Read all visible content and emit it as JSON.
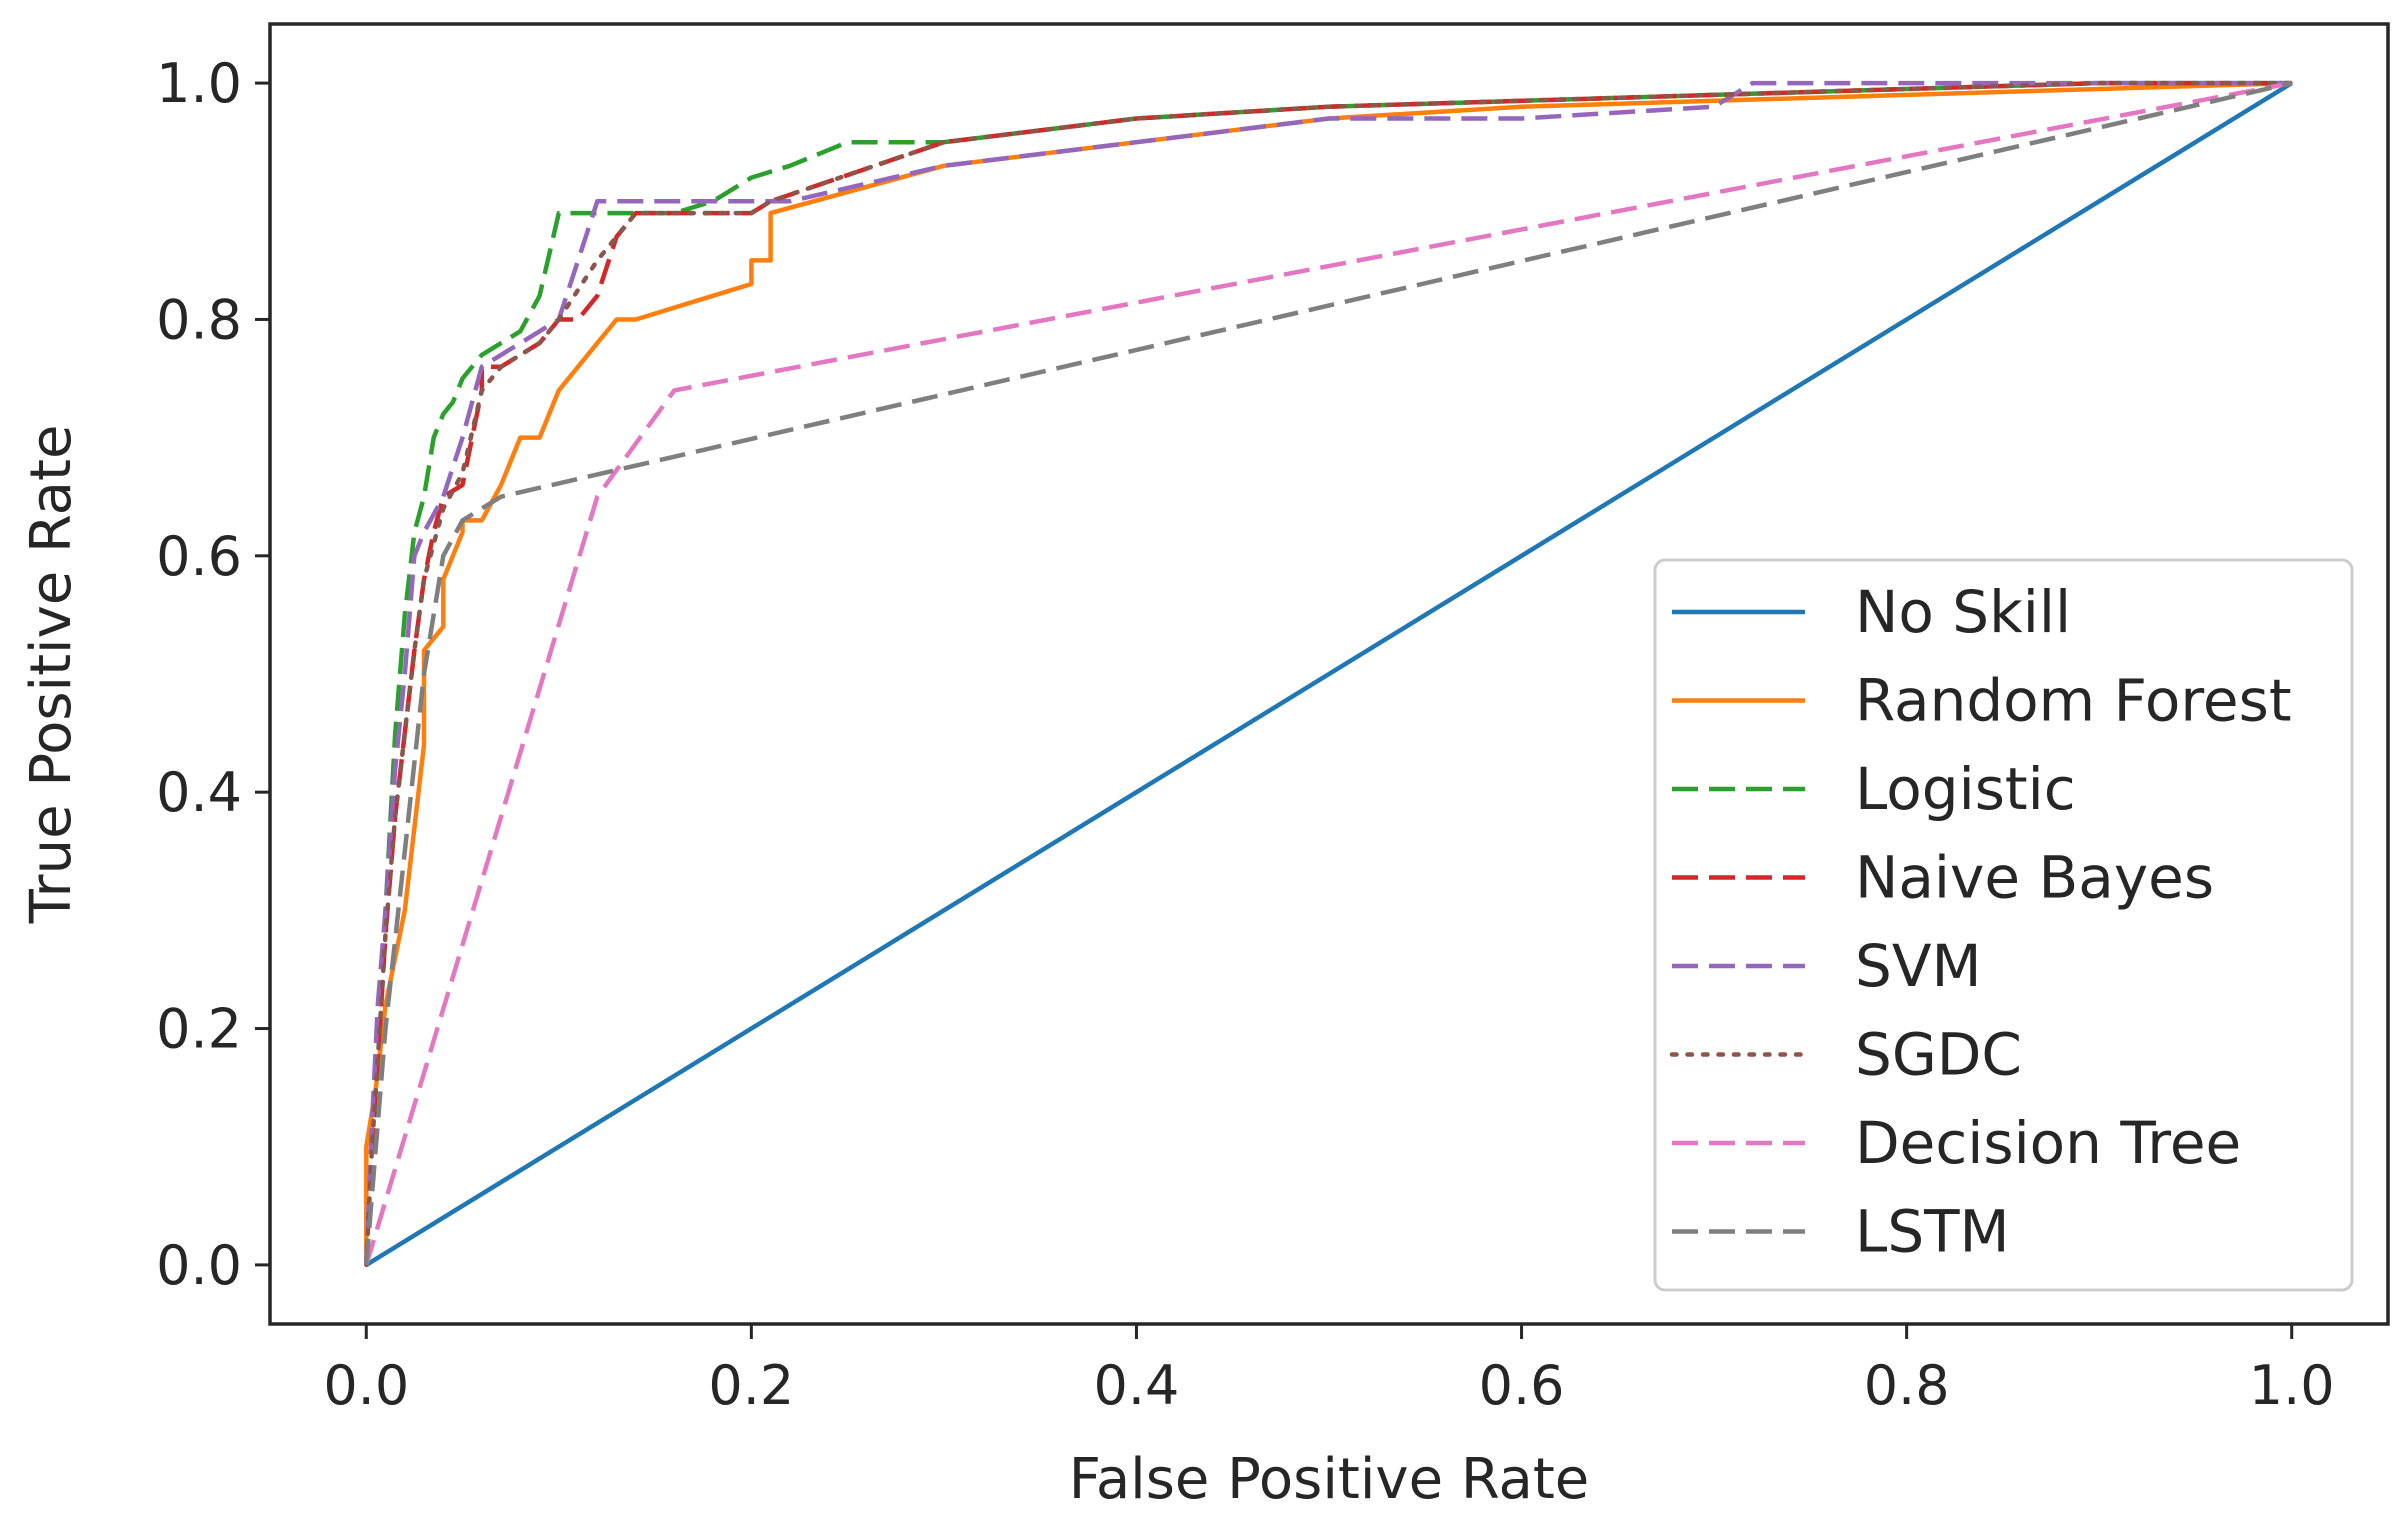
{
  "chart_data": {
    "type": "line",
    "title": "",
    "xlabel": "False Positive Rate",
    "ylabel": "True Positive Rate",
    "xlim": [
      -0.05,
      1.05
    ],
    "ylim": [
      -0.05,
      1.05
    ],
    "xticks": [
      0.0,
      0.2,
      0.4,
      0.6,
      0.8,
      1.0
    ],
    "yticks": [
      0.0,
      0.2,
      0.4,
      0.6,
      0.8,
      1.0
    ],
    "xtick_labels": [
      "0.0",
      "0.2",
      "0.4",
      "0.6",
      "0.8",
      "1.0"
    ],
    "ytick_labels": [
      "0.0",
      "0.2",
      "0.4",
      "0.6",
      "0.8",
      "1.0"
    ],
    "grid": false,
    "legend_position": "lower-right",
    "series": [
      {
        "name": "No Skill",
        "color": "#1f77b4",
        "style": "solid",
        "x": [
          0.0,
          1.0
        ],
        "y": [
          0.0,
          1.0
        ]
      },
      {
        "name": "Random Forest",
        "color": "#ff7f0e",
        "style": "solid",
        "x": [
          0.0,
          0.0,
          0.005,
          0.01,
          0.02,
          0.03,
          0.03,
          0.04,
          0.04,
          0.05,
          0.05,
          0.06,
          0.07,
          0.08,
          0.09,
          0.1,
          0.11,
          0.12,
          0.13,
          0.14,
          0.16,
          0.18,
          0.2,
          0.2,
          0.21,
          0.21,
          0.3,
          0.4,
          0.5,
          0.6,
          0.7,
          0.8,
          0.9,
          1.0
        ],
        "y": [
          0.0,
          0.1,
          0.15,
          0.22,
          0.3,
          0.44,
          0.52,
          0.54,
          0.58,
          0.62,
          0.63,
          0.63,
          0.66,
          0.7,
          0.7,
          0.74,
          0.76,
          0.78,
          0.8,
          0.8,
          0.81,
          0.82,
          0.83,
          0.85,
          0.85,
          0.89,
          0.93,
          0.95,
          0.97,
          0.98,
          0.985,
          0.99,
          0.995,
          1.0
        ]
      },
      {
        "name": "Logistic",
        "color": "#2ca02c",
        "style": "dashed",
        "x": [
          0.0,
          0.003,
          0.007,
          0.01,
          0.015,
          0.02,
          0.025,
          0.03,
          0.035,
          0.04,
          0.045,
          0.05,
          0.06,
          0.07,
          0.08,
          0.09,
          0.1,
          0.12,
          0.14,
          0.16,
          0.18,
          0.2,
          0.22,
          0.25,
          0.3,
          0.35,
          0.4,
          0.5,
          0.6,
          0.7,
          0.8,
          0.9,
          1.0
        ],
        "y": [
          0.0,
          0.1,
          0.2,
          0.3,
          0.45,
          0.55,
          0.62,
          0.65,
          0.7,
          0.72,
          0.73,
          0.75,
          0.77,
          0.78,
          0.79,
          0.82,
          0.89,
          0.89,
          0.89,
          0.89,
          0.9,
          0.92,
          0.93,
          0.95,
          0.95,
          0.96,
          0.97,
          0.98,
          0.985,
          0.99,
          0.995,
          1.0,
          1.0
        ]
      },
      {
        "name": "Naive Bayes",
        "color": "#d62728",
        "style": "dashed",
        "x": [
          0.0,
          0.003,
          0.007,
          0.01,
          0.015,
          0.02,
          0.025,
          0.03,
          0.035,
          0.04,
          0.05,
          0.06,
          0.06,
          0.07,
          0.08,
          0.09,
          0.1,
          0.11,
          0.12,
          0.13,
          0.14,
          0.2,
          0.21,
          0.3,
          0.4,
          0.5,
          0.6,
          0.7,
          0.8,
          0.9,
          1.0
        ],
        "y": [
          0.0,
          0.1,
          0.2,
          0.28,
          0.38,
          0.45,
          0.52,
          0.58,
          0.62,
          0.65,
          0.66,
          0.74,
          0.76,
          0.76,
          0.77,
          0.78,
          0.8,
          0.8,
          0.82,
          0.87,
          0.89,
          0.89,
          0.9,
          0.95,
          0.97,
          0.98,
          0.985,
          0.99,
          0.995,
          1.0,
          1.0
        ]
      },
      {
        "name": "SVM",
        "color": "#9467bd",
        "style": "dashed",
        "x": [
          0.0,
          0.003,
          0.006,
          0.01,
          0.015,
          0.02,
          0.025,
          0.03,
          0.04,
          0.05,
          0.06,
          0.07,
          0.08,
          0.09,
          0.1,
          0.11,
          0.12,
          0.14,
          0.18,
          0.22,
          0.3,
          0.4,
          0.5,
          0.6,
          0.7,
          0.72,
          0.8,
          0.9,
          1.0
        ],
        "y": [
          0.0,
          0.12,
          0.22,
          0.3,
          0.42,
          0.5,
          0.6,
          0.62,
          0.65,
          0.7,
          0.76,
          0.77,
          0.78,
          0.79,
          0.8,
          0.85,
          0.9,
          0.9,
          0.9,
          0.9,
          0.93,
          0.95,
          0.97,
          0.97,
          0.98,
          1.0,
          1.0,
          1.0,
          1.0
        ]
      },
      {
        "name": "SGDC",
        "color": "#8c564b",
        "style": "dotted",
        "x": [
          0.0,
          0.003,
          0.007,
          0.01,
          0.015,
          0.02,
          0.025,
          0.03,
          0.04,
          0.05,
          0.06,
          0.07,
          0.08,
          0.09,
          0.1,
          0.12,
          0.14,
          0.2,
          0.21,
          0.3,
          0.4,
          0.5,
          0.6,
          0.7,
          0.8,
          0.9,
          1.0
        ],
        "y": [
          0.0,
          0.1,
          0.2,
          0.28,
          0.38,
          0.45,
          0.52,
          0.58,
          0.64,
          0.67,
          0.74,
          0.76,
          0.77,
          0.78,
          0.8,
          0.85,
          0.89,
          0.89,
          0.9,
          0.95,
          0.97,
          0.98,
          0.985,
          0.99,
          0.995,
          1.0,
          1.0
        ]
      },
      {
        "name": "Decision Tree",
        "color": "#e377c2",
        "style": "dashed",
        "x": [
          0.0,
          0.12,
          0.16,
          1.0
        ],
        "y": [
          0.0,
          0.65,
          0.74,
          1.0
        ]
      },
      {
        "name": "LSTM",
        "color": "#7f7f7f",
        "style": "dashed",
        "x": [
          0.0,
          0.005,
          0.01,
          0.02,
          0.03,
          0.04,
          0.05,
          0.06,
          0.07,
          1.0
        ],
        "y": [
          0.0,
          0.1,
          0.2,
          0.35,
          0.5,
          0.6,
          0.63,
          0.64,
          0.65,
          1.0
        ]
      }
    ]
  }
}
